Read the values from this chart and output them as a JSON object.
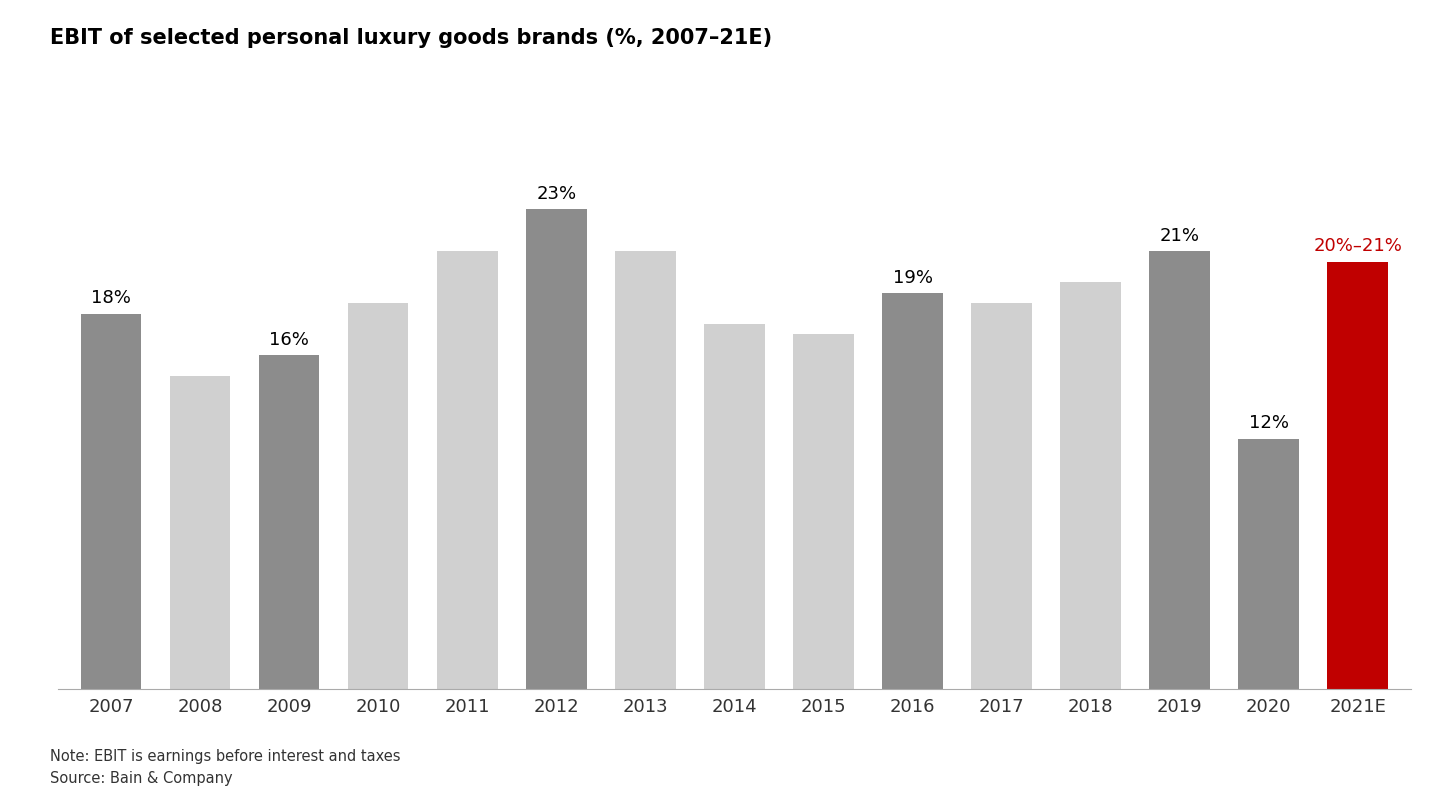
{
  "title": "EBIT of selected personal luxury goods brands (%, 2007–21E)",
  "categories": [
    "2007",
    "2008",
    "2009",
    "2010",
    "2011",
    "2012",
    "2013",
    "2014",
    "2015",
    "2016",
    "2017",
    "2018",
    "2019",
    "2020",
    "2021E"
  ],
  "values": [
    18,
    15,
    16,
    18.5,
    21,
    23,
    21,
    17.5,
    17,
    19,
    18.5,
    19.5,
    21,
    12,
    20.5
  ],
  "bar_colors": [
    "#8c8c8c",
    "#d0d0d0",
    "#8c8c8c",
    "#d0d0d0",
    "#d0d0d0",
    "#8c8c8c",
    "#d0d0d0",
    "#d0d0d0",
    "#d0d0d0",
    "#8c8c8c",
    "#d0d0d0",
    "#d0d0d0",
    "#8c8c8c",
    "#8c8c8c",
    "#c00000"
  ],
  "labels": [
    "18%",
    "",
    "16%",
    "",
    "",
    "23%",
    "",
    "",
    "",
    "19%",
    "",
    "",
    "21%",
    "12%",
    "20%–21%"
  ],
  "label_colors": [
    "#000000",
    "#000000",
    "#000000",
    "#000000",
    "#000000",
    "#000000",
    "#000000",
    "#000000",
    "#000000",
    "#000000",
    "#000000",
    "#000000",
    "#000000",
    "#000000",
    "#c00000"
  ],
  "note1": "Note: EBIT is earnings before interest and taxes",
  "note2": "Source: Bain & Company",
  "ylim": [
    0,
    28
  ],
  "background_color": "#ffffff"
}
